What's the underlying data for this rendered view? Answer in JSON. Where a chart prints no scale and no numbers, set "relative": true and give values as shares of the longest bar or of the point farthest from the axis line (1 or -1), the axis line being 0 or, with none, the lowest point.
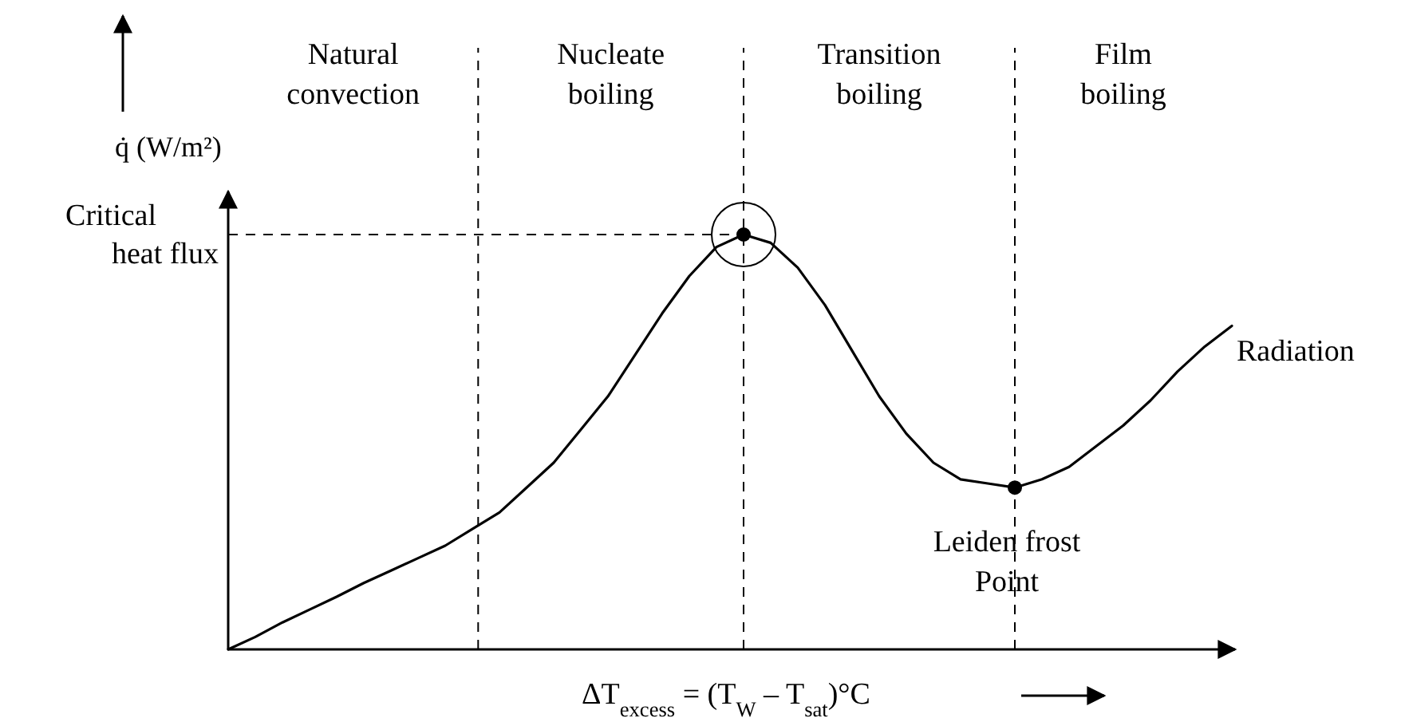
{
  "chart_data": {
    "type": "line",
    "relative": true,
    "xlabel": "ΔT$_{excess}$ = (T$_{W}$ – T$_{sat}$)°C",
    "ylabel": "q̇  (W/m²)",
    "categories": [
      null,
      null,
      null,
      null,
      null,
      null,
      null,
      null,
      null,
      null,
      null,
      null,
      null,
      null,
      null,
      null,
      null,
      null,
      null,
      null,
      null,
      null,
      null,
      null,
      null,
      null,
      null,
      null,
      null,
      null,
      null,
      null,
      null,
      null,
      null,
      null,
      null,
      null
    ],
    "series": [
      {
        "color": "#000000",
        "values": [
          0,
          0.03,
          0.065,
          0.096,
          0.127,
          0.16,
          0.19,
          0.22,
          0.25,
          0.29,
          0.33,
          0.39,
          0.45,
          0.53,
          0.61,
          0.71,
          0.81,
          0.9,
          0.97,
          1,
          0.98,
          0.92,
          0.83,
          0.72,
          0.61,
          0.52,
          0.45,
          0.41,
          0.4,
          0.39,
          0.41,
          0.44,
          0.49,
          0.54,
          0.6,
          0.67,
          0.73,
          0.78
        ]
      }
    ],
    "annotations": [
      "Natural convection",
      "Nucleate boiling",
      "Transition boiling",
      "Film boiling",
      "Critical heat flux",
      "Radiation",
      "Leiden frost Point"
    ]
  }
}
